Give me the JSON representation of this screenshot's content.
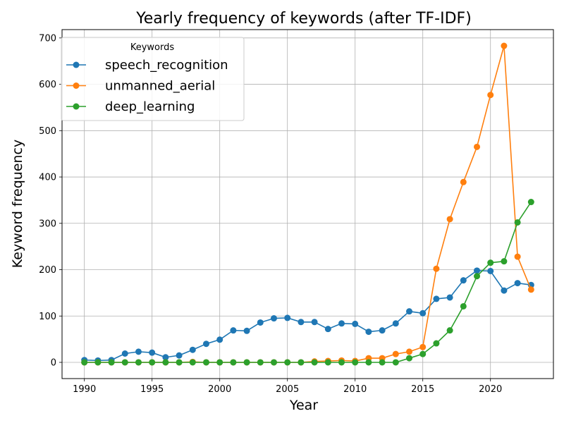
{
  "chart_data": {
    "type": "line",
    "title": "Yearly frequency of keywords (after TF-IDF)",
    "xlabel": "Year",
    "ylabel": "Keyword frequency",
    "xlim": [
      1988.35,
      2024.65
    ],
    "ylim": [
      -35,
      718
    ],
    "xticks": [
      1990,
      1995,
      2000,
      2005,
      2010,
      2015,
      2020
    ],
    "yticks": [
      0,
      100,
      200,
      300,
      400,
      500,
      600,
      700
    ],
    "grid": true,
    "legend": {
      "title": "Keywords",
      "position": "top-left"
    },
    "x": [
      1990,
      1991,
      1992,
      1993,
      1994,
      1995,
      1996,
      1997,
      1998,
      1999,
      2000,
      2001,
      2002,
      2003,
      2004,
      2005,
      2006,
      2007,
      2008,
      2009,
      2010,
      2011,
      2012,
      2013,
      2014,
      2015,
      2016,
      2017,
      2018,
      2019,
      2020,
      2021,
      2022,
      2023
    ],
    "series": [
      {
        "name": "speech_recognition",
        "color": "#1f77b4",
        "values": [
          5,
          4,
          5,
          19,
          23,
          21,
          11,
          15,
          27,
          40,
          49,
          69,
          68,
          86,
          95,
          96,
          87,
          87,
          72,
          84,
          83,
          66,
          69,
          84,
          110,
          106,
          137,
          140,
          177,
          198,
          197,
          155,
          171,
          167
        ]
      },
      {
        "name": "unmanned_aerial",
        "color": "#ff7f0e",
        "values": [
          0,
          0,
          0,
          0,
          0,
          0,
          0,
          0,
          1,
          0,
          0,
          0,
          0,
          0,
          0,
          0,
          0,
          2,
          3,
          4,
          3,
          9,
          9,
          18,
          23,
          33,
          202,
          309,
          389,
          465,
          577,
          683,
          228,
          157
        ]
      },
      {
        "name": "deep_learning",
        "color": "#2ca02c",
        "values": [
          0,
          0,
          0,
          0,
          0,
          0,
          0,
          0,
          0,
          0,
          0,
          0,
          0,
          0,
          0,
          0,
          0,
          0,
          0,
          0,
          0,
          0,
          0,
          0,
          9,
          18,
          41,
          69,
          121,
          186,
          215,
          218,
          302,
          346
        ]
      }
    ]
  }
}
